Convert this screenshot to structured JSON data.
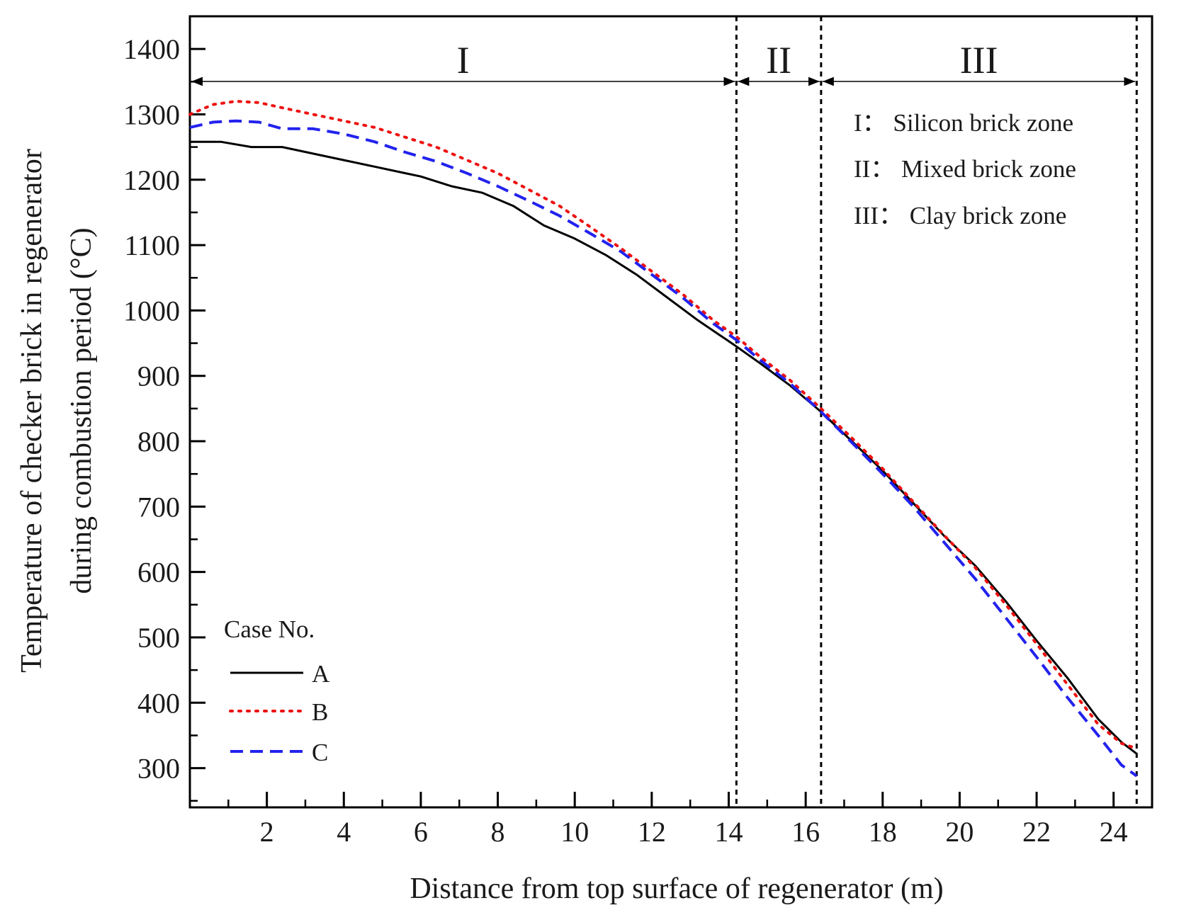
{
  "chart_data": {
    "type": "line",
    "title": "",
    "xlabel": "Distance from top surface of regenerator (m)",
    "ylabel_lines": [
      "Temperature of checker brick in regenerator",
      "during combustion period (°C)"
    ],
    "xlim": [
      0,
      25.0
    ],
    "ylim": [
      240,
      1450
    ],
    "xticks": [
      2,
      4,
      6,
      8,
      10,
      12,
      14,
      16,
      18,
      20,
      22,
      24
    ],
    "yticks": [
      300,
      400,
      500,
      600,
      700,
      800,
      900,
      1000,
      1100,
      1200,
      1300,
      1400
    ],
    "x_minor_step": 1,
    "y_minor_step": 50,
    "zone_boundaries": [
      14.2,
      16.4,
      24.6
    ],
    "zones": [
      {
        "label": "I",
        "start": 0,
        "end": 14.2
      },
      {
        "label": "II",
        "start": 14.2,
        "end": 16.4
      },
      {
        "label": "III",
        "start": 16.4,
        "end": 24.6
      }
    ],
    "zone_descriptions": [
      "I： Silicon brick zone",
      "II： Mixed brick zone",
      "III： Clay brick zone"
    ],
    "legend_title": "Case No.",
    "series": [
      {
        "name": "A",
        "color": "#000000",
        "dash": "solid",
        "x": [
          0,
          0.8,
          1.6,
          2.4,
          3.2,
          4.0,
          4.8,
          5.6,
          6.0,
          6.8,
          7.6,
          8.4,
          9.2,
          10.0,
          10.8,
          11.6,
          12.4,
          13.2,
          14.0,
          14.2,
          14.8,
          15.6,
          16.4,
          17.2,
          18.0,
          18.8,
          19.6,
          20.4,
          21.2,
          22.0,
          22.8,
          23.6,
          24.2,
          24.6
        ],
        "y": [
          1258,
          1258,
          1250,
          1250,
          1240,
          1230,
          1220,
          1210,
          1205,
          1190,
          1180,
          1160,
          1130,
          1110,
          1085,
          1055,
          1020,
          985,
          953,
          945,
          920,
          885,
          845,
          800,
          755,
          705,
          655,
          610,
          555,
          495,
          438,
          375,
          340,
          322
        ]
      },
      {
        "name": "B",
        "color": "#ee1111",
        "dash": "dotted",
        "x": [
          0,
          0.6,
          1.2,
          1.8,
          2.4,
          3.2,
          4.0,
          4.8,
          5.6,
          6.4,
          7.2,
          8.0,
          8.8,
          9.6,
          10.4,
          11.2,
          12.0,
          12.8,
          13.6,
          14.2,
          14.8,
          15.6,
          16.4,
          17.2,
          18.0,
          18.8,
          19.6,
          20.4,
          21.2,
          22.0,
          22.8,
          23.6,
          24.2,
          24.6
        ],
        "y": [
          1300,
          1315,
          1320,
          1318,
          1310,
          1300,
          1290,
          1280,
          1265,
          1250,
          1230,
          1210,
          1185,
          1160,
          1128,
          1095,
          1060,
          1025,
          985,
          960,
          930,
          893,
          850,
          805,
          758,
          707,
          656,
          607,
          550,
          490,
          428,
          367,
          338,
          330
        ]
      },
      {
        "name": "C",
        "color": "#2222ee",
        "dash": "dashed",
        "x": [
          0,
          0.6,
          1.2,
          1.8,
          2.4,
          3.2,
          4.0,
          4.8,
          5.6,
          6.4,
          7.2,
          8.0,
          8.8,
          9.6,
          10.4,
          11.2,
          12.0,
          12.8,
          13.6,
          14.2,
          14.8,
          15.6,
          16.4,
          17.2,
          18.0,
          18.8,
          19.6,
          20.4,
          21.2,
          22.0,
          22.8,
          23.6,
          24.2,
          24.6
        ],
        "y": [
          1280,
          1288,
          1290,
          1288,
          1278,
          1278,
          1270,
          1258,
          1242,
          1228,
          1210,
          1190,
          1168,
          1145,
          1118,
          1090,
          1055,
          1020,
          980,
          955,
          925,
          888,
          845,
          798,
          750,
          700,
          645,
          590,
          530,
          470,
          408,
          350,
          305,
          288
        ]
      }
    ]
  }
}
